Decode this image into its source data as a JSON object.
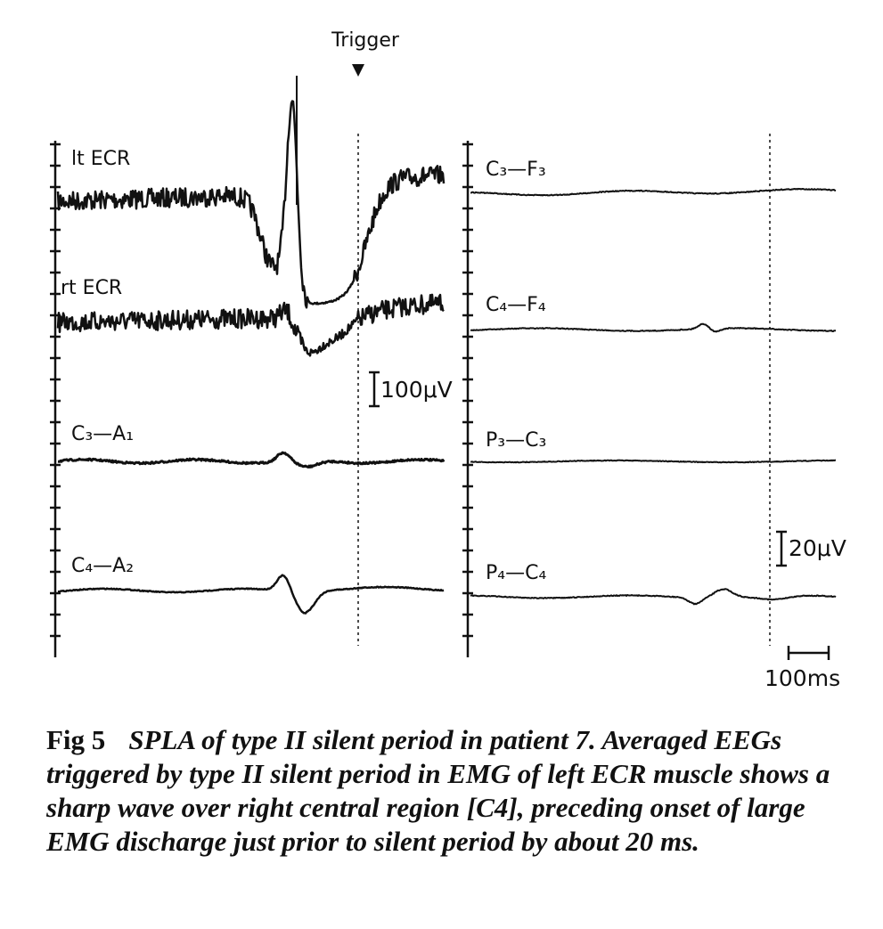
{
  "figure": {
    "trigger": "Trigger",
    "left_channels": [
      "lt ECR",
      "rt ECR",
      "C₃—A₁",
      "C₄—A₂"
    ],
    "right_channels": [
      "C₃—F₃",
      "C₄—F₄",
      "P₃—C₃",
      "P₄—C₄"
    ],
    "scale_emg": "100μV",
    "scale_eeg": "20μV",
    "scale_time": "100ms"
  },
  "caption": {
    "label": "Fig 5",
    "text": "SPLA of type II silent period in patient 7. Averaged EEGs triggered by type II silent period in EMG of left ECR muscle shows a sharp wave over right central region [C4], preceding onset of large EMG discharge just prior to silent period by about 20 ms."
  }
}
